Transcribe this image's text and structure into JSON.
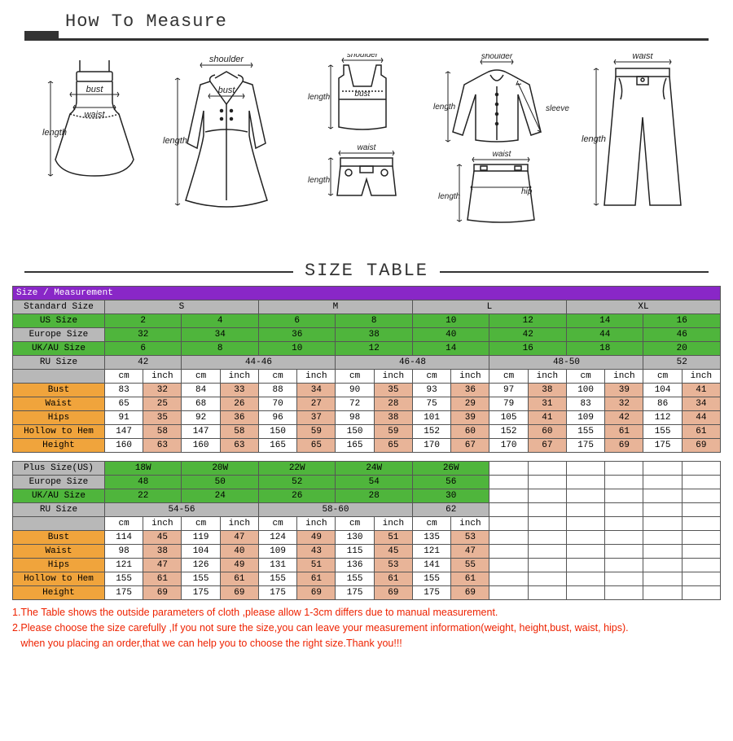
{
  "header": {
    "title": "How To Measure"
  },
  "sectionTitle": "SIZE TABLE",
  "colors": {
    "purple": "#8927c7",
    "gray": "#b8b8b8",
    "green": "#4fb53c",
    "orange": "#f0a43c",
    "peach": "#e8b498",
    "note": "#e20"
  },
  "diagrams": {
    "labels": [
      "bust",
      "waist",
      "length",
      "shoulder",
      "sleeve",
      "hip"
    ]
  },
  "standardTable": {
    "headerRow": "Size / Measurement",
    "rows": [
      {
        "label": "Standard Size",
        "class": "gray",
        "labelClass": "gray",
        "spans": [
          [
            "S",
            4
          ],
          [
            "M",
            4
          ],
          [
            "L",
            4
          ],
          [
            "XL",
            4
          ]
        ]
      },
      {
        "label": "US Size",
        "class": "green",
        "labelClass": "green",
        "spans": [
          [
            "2",
            2
          ],
          [
            "4",
            2
          ],
          [
            "6",
            2
          ],
          [
            "8",
            2
          ],
          [
            "10",
            2
          ],
          [
            "12",
            2
          ],
          [
            "14",
            2
          ],
          [
            "16",
            2
          ]
        ]
      },
      {
        "label": "Europe Size",
        "class": "green",
        "labelClass": "gray",
        "spans": [
          [
            "32",
            2
          ],
          [
            "34",
            2
          ],
          [
            "36",
            2
          ],
          [
            "38",
            2
          ],
          [
            "40",
            2
          ],
          [
            "42",
            2
          ],
          [
            "44",
            2
          ],
          [
            "46",
            2
          ]
        ]
      },
      {
        "label": "UK/AU Size",
        "class": "green",
        "labelClass": "green",
        "spans": [
          [
            "6",
            2
          ],
          [
            "8",
            2
          ],
          [
            "10",
            2
          ],
          [
            "12",
            2
          ],
          [
            "14",
            2
          ],
          [
            "16",
            2
          ],
          [
            "18",
            2
          ],
          [
            "20",
            2
          ]
        ]
      },
      {
        "label": "RU Size",
        "class": "gray",
        "labelClass": "gray",
        "spans": [
          [
            "42",
            2
          ],
          [
            "44-46",
            4
          ],
          [
            "46-48",
            4
          ],
          [
            "48-50",
            4
          ],
          [
            "52",
            2
          ]
        ]
      },
      {
        "label": "",
        "class": "white",
        "labelClass": "gray",
        "cells": [
          "cm",
          "inch",
          "cm",
          "inch",
          "cm",
          "inch",
          "cm",
          "inch",
          "cm",
          "inch",
          "cm",
          "inch",
          "cm",
          "inch",
          "cm",
          "inch"
        ]
      },
      {
        "label": "Bust",
        "class": "alt",
        "labelClass": "orange",
        "cells": [
          "83",
          "32",
          "84",
          "33",
          "88",
          "34",
          "90",
          "35",
          "93",
          "36",
          "97",
          "38",
          "100",
          "39",
          "104",
          "41"
        ]
      },
      {
        "label": "Waist",
        "class": "alt",
        "labelClass": "orange",
        "cells": [
          "65",
          "25",
          "68",
          "26",
          "70",
          "27",
          "72",
          "28",
          "75",
          "29",
          "79",
          "31",
          "83",
          "32",
          "86",
          "34"
        ]
      },
      {
        "label": "Hips",
        "class": "alt",
        "labelClass": "orange",
        "cells": [
          "91",
          "35",
          "92",
          "36",
          "96",
          "37",
          "98",
          "38",
          "101",
          "39",
          "105",
          "41",
          "109",
          "42",
          "112",
          "44"
        ]
      },
      {
        "label": "Hollow to Hem",
        "class": "alt",
        "labelClass": "orange",
        "cells": [
          "147",
          "58",
          "147",
          "58",
          "150",
          "59",
          "150",
          "59",
          "152",
          "60",
          "152",
          "60",
          "155",
          "61",
          "155",
          "61"
        ]
      },
      {
        "label": "Height",
        "class": "alt",
        "labelClass": "orange",
        "cells": [
          "160",
          "63",
          "160",
          "63",
          "165",
          "65",
          "165",
          "65",
          "170",
          "67",
          "170",
          "67",
          "175",
          "69",
          "175",
          "69"
        ]
      }
    ]
  },
  "plusTable": {
    "rows": [
      {
        "label": "Plus Size(US)",
        "class": "green",
        "labelClass": "gray",
        "spans": [
          [
            "18W",
            2
          ],
          [
            "20W",
            2
          ],
          [
            "22W",
            2
          ],
          [
            "24W",
            2
          ],
          [
            "26W",
            2
          ]
        ],
        "pad": 6
      },
      {
        "label": "Europe Size",
        "class": "green",
        "labelClass": "gray",
        "spans": [
          [
            "48",
            2
          ],
          [
            "50",
            2
          ],
          [
            "52",
            2
          ],
          [
            "54",
            2
          ],
          [
            "56",
            2
          ]
        ],
        "pad": 6
      },
      {
        "label": "UK/AU Size",
        "class": "green",
        "labelClass": "green",
        "spans": [
          [
            "22",
            2
          ],
          [
            "24",
            2
          ],
          [
            "26",
            2
          ],
          [
            "28",
            2
          ],
          [
            "30",
            2
          ]
        ],
        "pad": 6
      },
      {
        "label": "RU Size",
        "class": "gray",
        "labelClass": "gray",
        "spans": [
          [
            "54-56",
            4
          ],
          [
            "58-60",
            4
          ],
          [
            "62",
            2
          ]
        ],
        "pad": 6
      },
      {
        "label": "",
        "class": "white",
        "labelClass": "gray",
        "cells": [
          "cm",
          "inch",
          "cm",
          "inch",
          "cm",
          "inch",
          "cm",
          "inch",
          "cm",
          "inch"
        ],
        "pad": 6
      },
      {
        "label": "Bust",
        "class": "alt",
        "labelClass": "orange",
        "cells": [
          "114",
          "45",
          "119",
          "47",
          "124",
          "49",
          "130",
          "51",
          "135",
          "53"
        ],
        "pad": 6
      },
      {
        "label": "Waist",
        "class": "alt",
        "labelClass": "orange",
        "cells": [
          "98",
          "38",
          "104",
          "40",
          "109",
          "43",
          "115",
          "45",
          "121",
          "47"
        ],
        "pad": 6
      },
      {
        "label": "Hips",
        "class": "alt",
        "labelClass": "orange",
        "cells": [
          "121",
          "47",
          "126",
          "49",
          "131",
          "51",
          "136",
          "53",
          "141",
          "55"
        ],
        "pad": 6
      },
      {
        "label": "Hollow to Hem",
        "class": "alt",
        "labelClass": "orange",
        "cells": [
          "155",
          "61",
          "155",
          "61",
          "155",
          "61",
          "155",
          "61",
          "155",
          "61"
        ],
        "pad": 6
      },
      {
        "label": "Height",
        "class": "alt",
        "labelClass": "orange",
        "cells": [
          "175",
          "69",
          "175",
          "69",
          "175",
          "69",
          "175",
          "69",
          "175",
          "69"
        ],
        "pad": 6
      }
    ]
  },
  "notes": [
    "1.The Table shows the outside parameters of cloth ,please allow 1-3cm differs due to manual measurement.",
    "2.Please choose the size carefully ,If you not sure the size,you can leave your measurement information(weight, height,bust, waist, hips).",
    "   when you placing an order,that we can help you to choose the right size.Thank you!!!"
  ]
}
